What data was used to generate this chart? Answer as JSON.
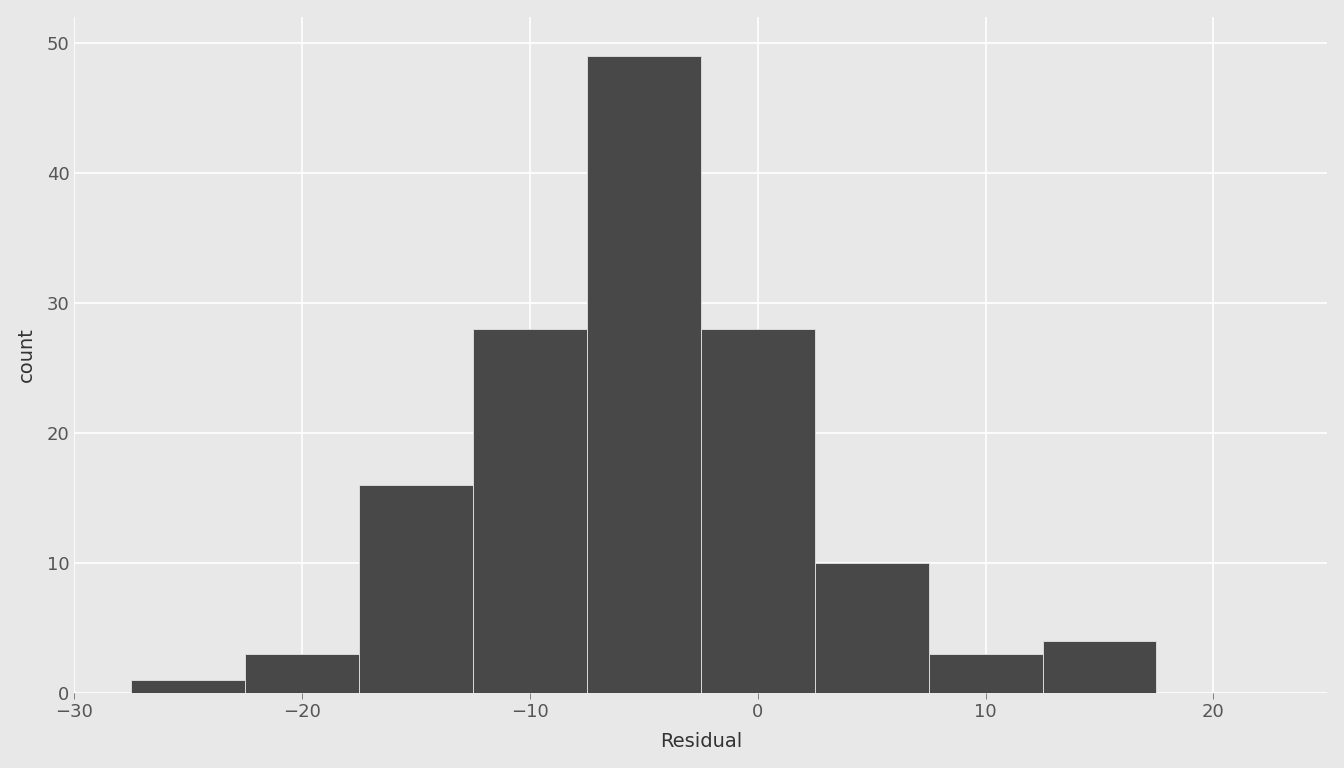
{
  "title": "",
  "xlabel": "Residual",
  "ylabel": "count",
  "bar_edges": [
    -27.5,
    -22.5,
    -17.5,
    -12.5,
    -7.5,
    -2.5,
    2.5,
    7.5,
    12.5,
    17.5,
    22.5
  ],
  "bar_heights": [
    1,
    3,
    16,
    28,
    49,
    28,
    10,
    3,
    4,
    0
  ],
  "bar_color": "#484848",
  "bar_edgecolor": "#d9d9d9",
  "bar_linewidth": 0.7,
  "xlim": [
    -30,
    25
  ],
  "ylim": [
    0,
    52
  ],
  "xticks": [
    -30,
    -20,
    -10,
    0,
    10,
    20
  ],
  "yticks": [
    0,
    10,
    20,
    30,
    40,
    50
  ],
  "background_color": "#e8e8e8",
  "panel_background": "#e8e8e8",
  "grid_color": "#ffffff",
  "grid_linewidth": 1.2,
  "tick_label_fontsize": 13,
  "axis_label_fontsize": 14
}
